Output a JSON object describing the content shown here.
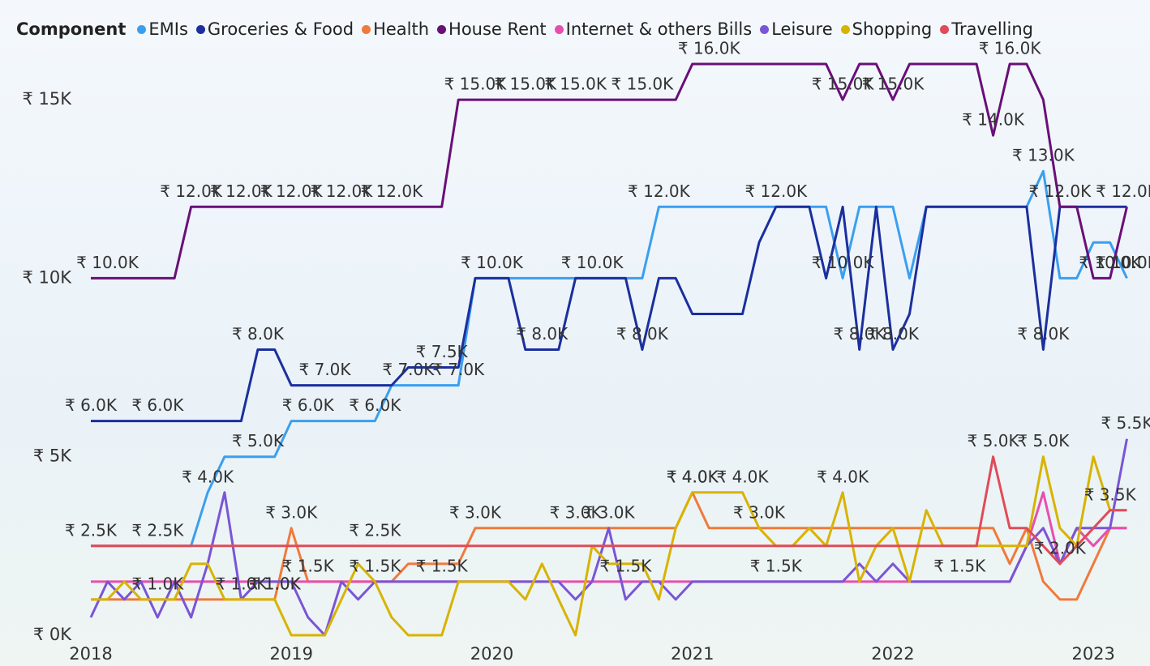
{
  "chart_data": {
    "type": "line",
    "legend_title": "Component",
    "x": [
      2018,
      2018.083,
      2018.167,
      2018.25,
      2018.333,
      2018.417,
      2018.5,
      2018.583,
      2018.667,
      2018.75,
      2018.833,
      2018.917,
      2019,
      2019.083,
      2019.167,
      2019.25,
      2019.333,
      2019.417,
      2019.5,
      2019.583,
      2019.667,
      2019.75,
      2019.833,
      2019.917,
      2020,
      2020.083,
      2020.167,
      2020.25,
      2020.333,
      2020.417,
      2020.5,
      2020.583,
      2020.667,
      2020.75,
      2020.833,
      2020.917,
      2021,
      2021.083,
      2021.167,
      2021.25,
      2021.333,
      2021.417,
      2021.5,
      2021.583,
      2021.667,
      2021.75,
      2021.833,
      2021.917,
      2022,
      2022.083,
      2022.167,
      2022.25,
      2022.333,
      2022.417,
      2022.5,
      2022.583,
      2022.667,
      2022.75,
      2022.833,
      2022.917,
      2023,
      2023.083,
      2023.167
    ],
    "xlim": [
      2018,
      2023.25
    ],
    "xticks": [
      2018,
      2019,
      2020,
      2021,
      2022,
      2023
    ],
    "ylim": [
      0,
      16500
    ],
    "yticks": [
      {
        "value": 0,
        "label": "₹ 0K"
      },
      {
        "value": 5000,
        "label": "₹ 5K"
      },
      {
        "value": 10000,
        "label": "₹ 10K"
      },
      {
        "value": 15000,
        "label": "₹ 15K"
      }
    ],
    "grid": false,
    "series": [
      {
        "name": "EMIs",
        "color": "#3a9ff0",
        "values": [
          2500,
          2500,
          2500,
          2500,
          2500,
          2500,
          2500,
          4000,
          5000,
          5000,
          5000,
          5000,
          6000,
          6000,
          6000,
          6000,
          6000,
          6000,
          7000,
          7000,
          7000,
          7000,
          7000,
          10000,
          10000,
          10000,
          10000,
          10000,
          10000,
          10000,
          10000,
          10000,
          10000,
          10000,
          12000,
          12000,
          12000,
          12000,
          12000,
          12000,
          12000,
          12000,
          12000,
          12000,
          12000,
          10000,
          12000,
          12000,
          12000,
          10000,
          12000,
          12000,
          12000,
          12000,
          12000,
          12000,
          12000,
          13000,
          10000,
          10000,
          11000,
          11000,
          10000
        ],
        "value_labels": [
          "₹ 2.5K",
          null,
          null,
          null,
          "₹ 2.5K",
          null,
          null,
          "₹ 4.0K",
          null,
          null,
          "₹ 5.0K",
          null,
          null,
          "₹ 6.0K",
          null,
          null,
          null,
          "₹ 6.0K",
          null,
          "₹ 7.0K",
          null,
          null,
          "₹ 7.0K",
          null,
          null,
          null,
          null,
          null,
          null,
          null,
          null,
          null,
          null,
          null,
          "₹ 12.0K",
          null,
          null,
          null,
          null,
          null,
          null,
          null,
          null,
          null,
          null,
          "₹ 10.0K",
          null,
          null,
          null,
          null,
          null,
          null,
          null,
          null,
          null,
          null,
          null,
          "₹ 13.0K",
          null,
          null,
          null,
          null,
          "₹ 10.0K"
        ]
      },
      {
        "name": "Groceries & Food",
        "color": "#1b2f9e",
        "values": [
          6000,
          6000,
          6000,
          6000,
          6000,
          6000,
          6000,
          6000,
          6000,
          6000,
          8000,
          8000,
          7000,
          7000,
          7000,
          7000,
          7000,
          7000,
          7000,
          7500,
          7500,
          7500,
          7500,
          10000,
          10000,
          10000,
          8000,
          8000,
          8000,
          10000,
          10000,
          10000,
          10000,
          8000,
          10000,
          10000,
          9000,
          9000,
          9000,
          9000,
          11000,
          12000,
          12000,
          12000,
          10000,
          12000,
          8000,
          12000,
          8000,
          9000,
          12000,
          12000,
          12000,
          12000,
          12000,
          12000,
          12000,
          8000,
          12000,
          12000,
          12000,
          12000,
          12000
        ],
        "value_labels": [
          "₹ 6.0K",
          null,
          null,
          null,
          "₹ 6.0K",
          null,
          null,
          null,
          null,
          null,
          "₹ 8.0K",
          null,
          null,
          null,
          "₹ 7.0K",
          null,
          null,
          null,
          null,
          null,
          null,
          "₹ 7.5K",
          null,
          null,
          "₹ 10.0K",
          null,
          null,
          "₹ 8.0K",
          null,
          null,
          "₹ 10.0K",
          null,
          null,
          "₹ 8.0K",
          null,
          null,
          null,
          null,
          null,
          null,
          null,
          "₹ 12.0K",
          null,
          null,
          null,
          null,
          "₹ 8.0K",
          null,
          "₹ 8.0K",
          null,
          null,
          null,
          null,
          null,
          null,
          null,
          null,
          "₹ 8.0K",
          "₹ 12.0K",
          null,
          null,
          null,
          null
        ]
      },
      {
        "name": "Health",
        "color": "#ef7a3b",
        "values": [
          1000,
          1000,
          1000,
          1000,
          1000,
          1000,
          1000,
          1000,
          1000,
          1000,
          1000,
          1000,
          3000,
          1500,
          1500,
          1500,
          1500,
          1500,
          1500,
          2000,
          2000,
          2000,
          2000,
          3000,
          3000,
          3000,
          3000,
          3000,
          3000,
          3000,
          3000,
          3000,
          3000,
          3000,
          3000,
          3000,
          4000,
          3000,
          3000,
          3000,
          3000,
          3000,
          3000,
          3000,
          3000,
          3000,
          3000,
          3000,
          3000,
          3000,
          3000,
          3000,
          3000,
          3000,
          3000,
          2000,
          3000,
          1500,
          1000,
          1000,
          2000,
          3000,
          3000
        ],
        "value_labels": [
          null,
          null,
          null,
          null,
          null,
          null,
          null,
          null,
          null,
          null,
          null,
          "₹ 1.0K",
          "₹ 3.0K",
          null,
          null,
          null,
          null,
          null,
          null,
          null,
          null,
          null,
          null,
          "₹ 3.0K",
          null,
          null,
          null,
          null,
          null,
          "₹ 3.0K",
          null,
          null,
          null,
          null,
          null,
          null,
          "₹ 4.0K",
          null,
          null,
          null,
          null,
          null,
          null,
          null,
          null,
          null,
          null,
          null,
          null,
          null,
          null,
          null,
          null,
          null,
          null,
          null,
          null,
          null,
          null,
          null,
          null,
          null,
          null
        ]
      },
      {
        "name": "House Rent",
        "color": "#6a0f78",
        "values": [
          10000,
          10000,
          10000,
          10000,
          10000,
          10000,
          12000,
          12000,
          12000,
          12000,
          12000,
          12000,
          12000,
          12000,
          12000,
          12000,
          12000,
          12000,
          12000,
          12000,
          12000,
          12000,
          15000,
          15000,
          15000,
          15000,
          15000,
          15000,
          15000,
          15000,
          15000,
          15000,
          15000,
          15000,
          15000,
          15000,
          16000,
          16000,
          16000,
          16000,
          16000,
          16000,
          16000,
          16000,
          16000,
          15000,
          16000,
          16000,
          15000,
          16000,
          16000,
          16000,
          16000,
          16000,
          14000,
          16000,
          16000,
          15000,
          12000,
          12000,
          10000,
          10000,
          12000
        ],
        "value_labels": [
          null,
          "₹ 10.0K",
          null,
          null,
          null,
          null,
          "₹ 12.0K",
          null,
          null,
          "₹ 12.0K",
          null,
          null,
          "₹ 12.0K",
          null,
          null,
          "₹ 12.0K",
          null,
          null,
          "₹ 12.0K",
          null,
          null,
          null,
          null,
          "₹ 15.0K",
          null,
          null,
          "₹ 15.0K",
          null,
          null,
          "₹ 15.0K",
          null,
          null,
          null,
          "₹ 15.0K",
          null,
          null,
          null,
          "₹ 16.0K",
          null,
          null,
          null,
          null,
          null,
          null,
          null,
          "₹ 15.0K",
          null,
          null,
          "₹ 15.0K",
          null,
          null,
          null,
          null,
          null,
          "₹ 14.0K",
          "₹ 16.0K",
          null,
          null,
          null,
          null,
          null,
          "₹ 10.0K",
          "₹ 12.0K"
        ]
      },
      {
        "name": "Internet & others Bills",
        "color": "#e64fae",
        "values": [
          1500,
          1500,
          1500,
          1500,
          1500,
          1500,
          1500,
          1500,
          1500,
          1500,
          1500,
          1500,
          1500,
          1500,
          1500,
          1500,
          1500,
          1500,
          1500,
          1500,
          1500,
          1500,
          1500,
          1500,
          1500,
          1500,
          1500,
          1500,
          1500,
          1500,
          1500,
          1500,
          1500,
          1500,
          1500,
          1500,
          1500,
          1500,
          1500,
          1500,
          1500,
          1500,
          1500,
          1500,
          1500,
          1500,
          1500,
          1500,
          1500,
          1500,
          1500,
          1500,
          1500,
          1500,
          1500,
          1500,
          2500,
          4000,
          2000,
          3000,
          2500,
          3000,
          3000
        ],
        "value_labels": [
          null,
          null,
          null,
          null,
          null,
          null,
          null,
          null,
          null,
          null,
          null,
          null,
          null,
          "₹ 1.5K",
          null,
          null,
          null,
          "₹ 1.5K",
          null,
          null,
          null,
          "₹ 1.5K",
          null,
          null,
          null,
          null,
          null,
          null,
          null,
          null,
          null,
          null,
          "₹ 1.5K",
          null,
          null,
          null,
          null,
          null,
          null,
          null,
          null,
          "₹ 1.5K",
          null,
          null,
          null,
          null,
          null,
          null,
          null,
          null,
          null,
          null,
          "₹ 1.5K",
          null,
          null,
          null,
          null,
          null,
          "₹ 2.0K",
          null,
          null,
          null,
          null
        ]
      },
      {
        "name": "Leisure",
        "color": "#7a55d6",
        "values": [
          500,
          1500,
          1000,
          1500,
          500,
          1500,
          500,
          2000,
          4000,
          1000,
          1500,
          1500,
          1500,
          500,
          0,
          1500,
          1000,
          1500,
          1500,
          1500,
          1500,
          1500,
          1500,
          1500,
          1500,
          1500,
          1500,
          1500,
          1500,
          1000,
          1500,
          3000,
          1000,
          1500,
          1500,
          1000,
          1500,
          1500,
          1500,
          1500,
          1500,
          1500,
          1500,
          1500,
          1500,
          1500,
          2000,
          1500,
          2000,
          1500,
          1500,
          1500,
          1500,
          1500,
          1500,
          1500,
          2500,
          3000,
          2000,
          3000,
          3000,
          3000,
          5500
        ],
        "value_labels": [
          null,
          null,
          null,
          null,
          null,
          null,
          null,
          null,
          null,
          "₹ 1.0K",
          null,
          null,
          null,
          null,
          null,
          null,
          null,
          null,
          null,
          null,
          null,
          null,
          null,
          null,
          null,
          null,
          null,
          null,
          null,
          null,
          null,
          "₹ 3.0K",
          null,
          null,
          null,
          null,
          null,
          null,
          null,
          null,
          null,
          null,
          null,
          null,
          null,
          null,
          null,
          null,
          null,
          null,
          null,
          null,
          null,
          null,
          null,
          null,
          null,
          null,
          null,
          null,
          null,
          null,
          "₹ 5.5K"
        ]
      },
      {
        "name": "Shopping",
        "color": "#d8b300",
        "values": [
          1000,
          1000,
          1500,
          1000,
          1000,
          1000,
          2000,
          2000,
          1000,
          1000,
          1000,
          1000,
          0,
          0,
          0,
          1000,
          2000,
          1500,
          500,
          0,
          0,
          0,
          1500,
          1500,
          1500,
          1500,
          1000,
          2000,
          1000,
          0,
          2500,
          2000,
          2000,
          2000,
          1000,
          3000,
          4000,
          4000,
          4000,
          4000,
          3000,
          2500,
          2500,
          3000,
          2500,
          4000,
          1500,
          2500,
          3000,
          1500,
          3500,
          2500,
          2500,
          2500,
          2500,
          2500,
          2500,
          5000,
          3000,
          2500,
          5000,
          3500,
          3500
        ],
        "value_labels": [
          null,
          null,
          null,
          null,
          "₹ 1.0K",
          null,
          null,
          null,
          null,
          null,
          null,
          "₹ 1.0K",
          null,
          null,
          null,
          null,
          null,
          null,
          null,
          null,
          null,
          null,
          null,
          null,
          null,
          null,
          null,
          null,
          null,
          null,
          null,
          null,
          null,
          null,
          null,
          null,
          "₹ 4.0K",
          null,
          null,
          "₹ 4.0K",
          "₹ 3.0K",
          null,
          null,
          null,
          null,
          "₹ 4.0K",
          null,
          null,
          null,
          null,
          null,
          null,
          null,
          null,
          null,
          null,
          null,
          "₹ 5.0K",
          null,
          null,
          null,
          null,
          null
        ]
      },
      {
        "name": "Travelling",
        "color": "#e14b58",
        "values": [
          2500,
          2500,
          2500,
          2500,
          2500,
          2500,
          2500,
          2500,
          2500,
          2500,
          2500,
          2500,
          2500,
          2500,
          2500,
          2500,
          2500,
          2500,
          2500,
          2500,
          2500,
          2500,
          2500,
          2500,
          2500,
          2500,
          2500,
          2500,
          2500,
          2500,
          2500,
          2500,
          2500,
          2500,
          2500,
          2500,
          2500,
          2500,
          2500,
          2500,
          2500,
          2500,
          2500,
          2500,
          2500,
          2500,
          2500,
          2500,
          2500,
          2500,
          2500,
          2500,
          2500,
          2500,
          5000,
          3000,
          3000,
          2500,
          2000,
          2500,
          3000,
          3500,
          3500
        ],
        "value_labels": [
          null,
          null,
          null,
          null,
          null,
          null,
          null,
          null,
          null,
          null,
          null,
          null,
          null,
          null,
          null,
          null,
          null,
          "₹ 2.5K",
          null,
          null,
          null,
          null,
          null,
          null,
          null,
          null,
          null,
          null,
          null,
          null,
          null,
          null,
          null,
          null,
          null,
          null,
          null,
          null,
          null,
          null,
          null,
          null,
          null,
          null,
          null,
          null,
          null,
          null,
          null,
          null,
          null,
          null,
          null,
          null,
          "₹ 5.0K",
          null,
          null,
          null,
          null,
          null,
          null,
          "₹ 3.5K",
          null
        ]
      }
    ]
  }
}
